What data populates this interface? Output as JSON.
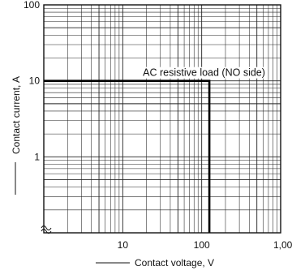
{
  "chart_data": {
    "type": "line",
    "xlabel": "Contact voltage, V",
    "ylabel": "Contact current, A",
    "x_scale": "log",
    "y_scale": "log",
    "xlim": [
      1,
      1000
    ],
    "ylim": [
      0.1,
      100
    ],
    "x_ticks": [
      {
        "value": 10,
        "label": "10"
      },
      {
        "value": 100,
        "label": "100"
      },
      {
        "value": 1000,
        "label": "1,000"
      }
    ],
    "y_ticks": [
      {
        "value": 1,
        "label": "1"
      },
      {
        "value": 10,
        "label": "10"
      },
      {
        "value": 100,
        "label": "100"
      }
    ],
    "grid": true,
    "series": [
      {
        "name": "AC resistive load (NO side)",
        "points": [
          {
            "x": 1,
            "y": 10
          },
          {
            "x": 125,
            "y": 10
          },
          {
            "x": 125,
            "y": 0.1
          }
        ]
      }
    ],
    "annotations": [
      {
        "text": "AC resistive load (NO side)"
      }
    ]
  }
}
